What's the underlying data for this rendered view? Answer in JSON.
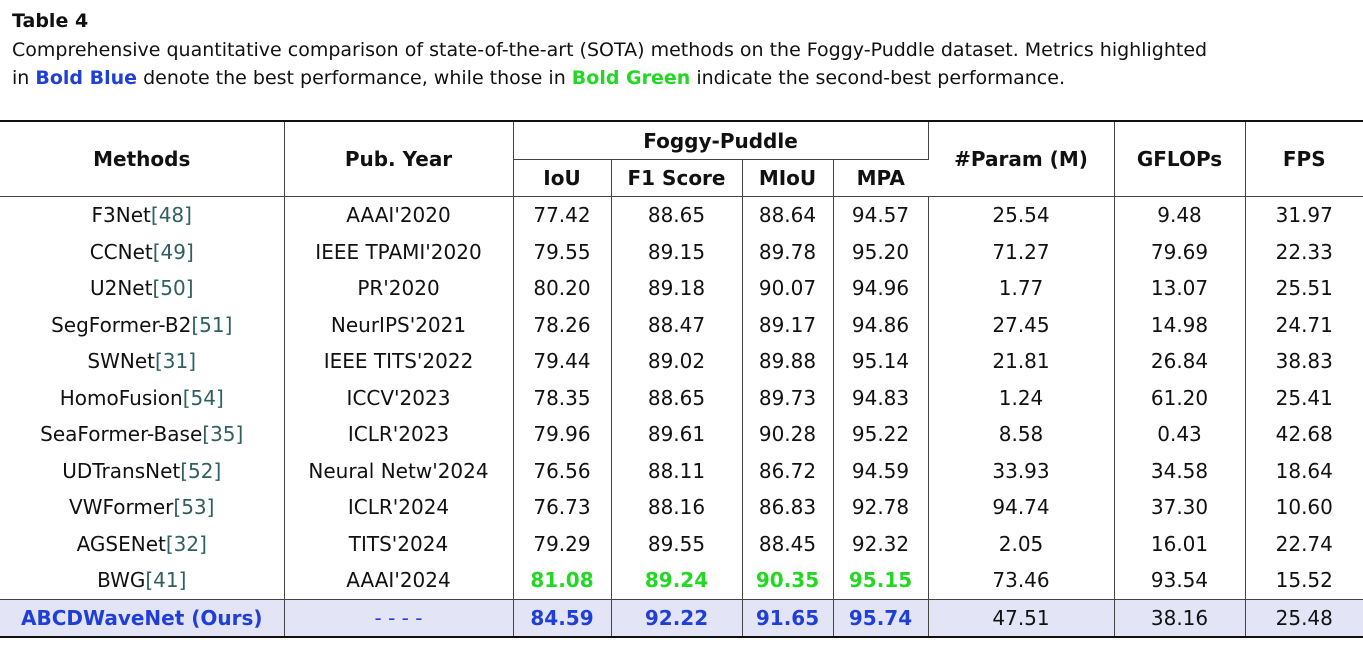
{
  "caption": {
    "title": "Table 4",
    "line1": "Comprehensive quantitative comparison of state-of-the-art (SOTA) methods on the Foggy-Puddle dataset. Metrics highlighted",
    "line2_prefix": "in ",
    "bold_blue": "Bold Blue",
    "line2_mid": " denote the best performance, while those in ",
    "bold_green": "Bold Green",
    "line2_suffix": " indicate the second-best performance."
  },
  "headers": {
    "methods": "Methods",
    "pub_year": "Pub. Year",
    "dataset": "Foggy-Puddle",
    "iou": "IoU",
    "f1": "F1 Score",
    "miou": "MIoU",
    "mpa": "MPA",
    "params": "#Param (M)",
    "gflops": "GFLOPs",
    "fps": "FPS"
  },
  "rows": [
    {
      "name": "F3Net",
      "cite": "[48]",
      "year": "AAAI'2020",
      "iou": "77.42",
      "f1": "88.65",
      "miou": "88.64",
      "mpa": "94.57",
      "params": "25.54",
      "gflops": "9.48",
      "fps": "31.97"
    },
    {
      "name": "CCNet",
      "cite": "[49]",
      "year": "IEEE TPAMI'2020",
      "iou": "79.55",
      "f1": "89.15",
      "miou": "89.78",
      "mpa": "95.20",
      "params": "71.27",
      "gflops": "79.69",
      "fps": "22.33"
    },
    {
      "name": "U2Net",
      "cite": "[50]",
      "year": "PR'2020",
      "iou": "80.20",
      "f1": "89.18",
      "miou": "90.07",
      "mpa": "94.96",
      "params": "1.77",
      "gflops": "13.07",
      "fps": "25.51"
    },
    {
      "name": "SegFormer-B2",
      "cite": "[51]",
      "year": "NeurIPS'2021",
      "iou": "78.26",
      "f1": "88.47",
      "miou": "89.17",
      "mpa": "94.86",
      "params": "27.45",
      "gflops": "14.98",
      "fps": "24.71"
    },
    {
      "name": "SWNet",
      "cite": "[31]",
      "year": "IEEE TITS'2022",
      "iou": "79.44",
      "f1": "89.02",
      "miou": "89.88",
      "mpa": "95.14",
      "params": "21.81",
      "gflops": "26.84",
      "fps": "38.83"
    },
    {
      "name": "HomoFusion",
      "cite": "[54]",
      "year": "ICCV'2023",
      "iou": "78.35",
      "f1": "88.65",
      "miou": "89.73",
      "mpa": "94.83",
      "params": "1.24",
      "gflops": "61.20",
      "fps": "25.41"
    },
    {
      "name": "SeaFormer-Base",
      "cite": "[35]",
      "year": "ICLR'2023",
      "iou": "79.96",
      "f1": "89.61",
      "miou": "90.28",
      "mpa": "95.22",
      "params": "8.58",
      "gflops": "0.43",
      "fps": "42.68"
    },
    {
      "name": "UDTransNet",
      "cite": "[52]",
      "year": "Neural Netw'2024",
      "iou": "76.56",
      "f1": "88.11",
      "miou": "86.72",
      "mpa": "94.59",
      "params": "33.93",
      "gflops": "34.58",
      "fps": "18.64"
    },
    {
      "name": "VWFormer",
      "cite": "[53]",
      "year": "ICLR'2024",
      "iou": "76.73",
      "f1": "88.16",
      "miou": "86.83",
      "mpa": "92.78",
      "params": "94.74",
      "gflops": "37.30",
      "fps": "10.60"
    },
    {
      "name": "AGSENet",
      "cite": "[32]",
      "year": "TITS'2024",
      "iou": "79.29",
      "f1": "89.55",
      "miou": "88.45",
      "mpa": "92.32",
      "params": "2.05",
      "gflops": "16.01",
      "fps": "22.74"
    },
    {
      "name": "BWG",
      "cite": "[41]",
      "year": "AAAI'2024",
      "iou": "81.08",
      "f1": "89.24",
      "miou": "90.35",
      "mpa": "95.15",
      "params": "73.46",
      "gflops": "93.54",
      "fps": "15.52"
    }
  ],
  "ours": {
    "name": "ABCDWaveNet (Ours)",
    "year": "- - - -",
    "iou": "84.59",
    "f1": "92.22",
    "miou": "91.65",
    "mpa": "95.74",
    "params": "47.51",
    "gflops": "38.16",
    "fps": "25.48"
  },
  "colors": {
    "best": "#1f3fd8",
    "second": "#22d822",
    "ours_row_bg": "#e3e5f7"
  }
}
